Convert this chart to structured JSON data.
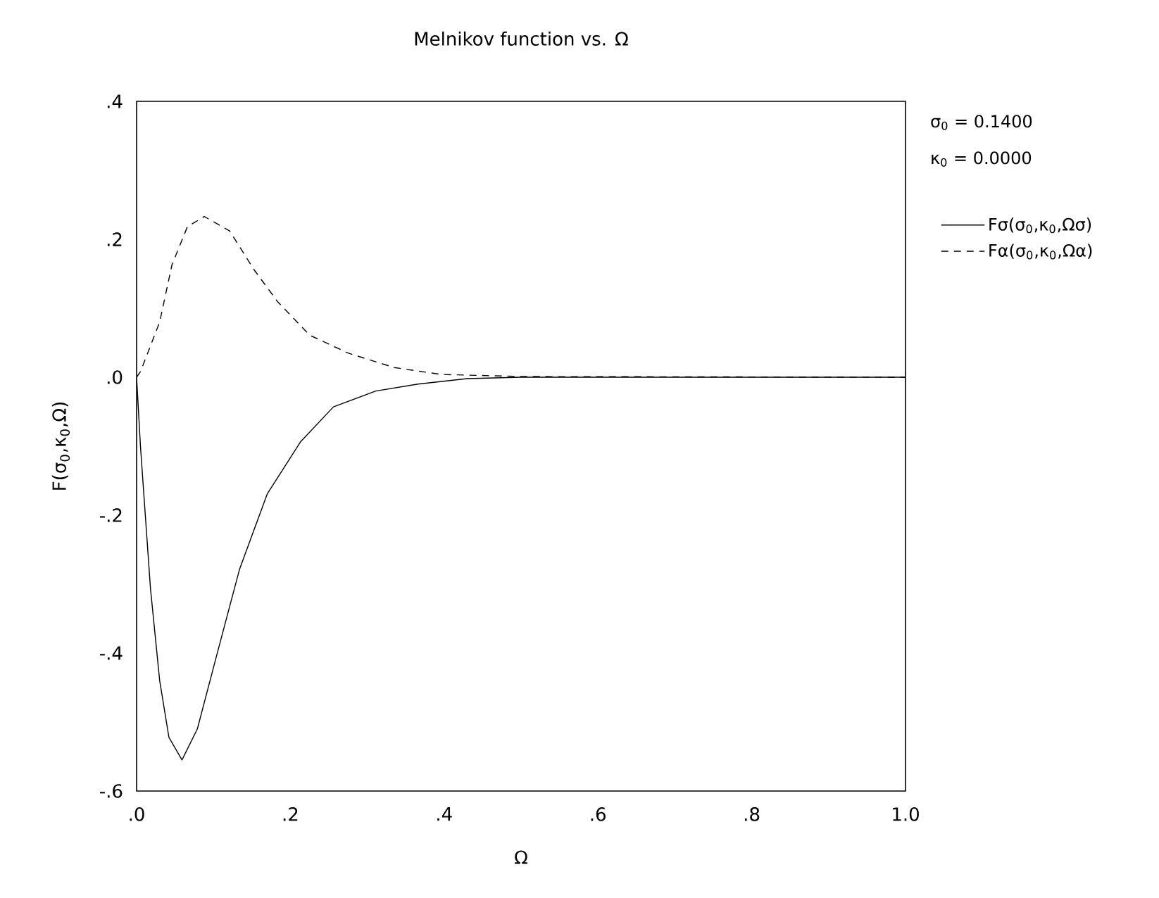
{
  "chart_data": {
    "type": "line",
    "title": "Melnikov function  vs. Ω",
    "xlabel": "Ω",
    "ylabel": "F(σ$_{0}$,κ$_{0}$,Ω)",
    "annotations": [
      "σ$_{0}$   =   0.1400",
      "κ$_{0}$   =   0.0000"
    ],
    "xlim": [
      0,
      1.0
    ],
    "ylim": [
      -0.6,
      0.4
    ],
    "xticks": [
      {
        "value": 0,
        "label": ".0"
      },
      {
        "value": 0.2,
        "label": ".2"
      },
      {
        "value": 0.4,
        "label": ".4"
      },
      {
        "value": 0.6,
        "label": ".6"
      },
      {
        "value": 0.8,
        "label": ".8"
      },
      {
        "value": 1.0,
        "label": "1.0"
      }
    ],
    "yticks": [
      {
        "value": -0.6,
        "label": "-.6"
      },
      {
        "value": -0.4,
        "label": "-.4"
      },
      {
        "value": -0.2,
        "label": "-.2"
      },
      {
        "value": 0,
        "label": ".0"
      },
      {
        "value": 0.2,
        "label": ".2"
      },
      {
        "value": 0.4,
        "label": ".4"
      }
    ],
    "legend": "right",
    "series": [
      {
        "name": "Fσ(σ$_{0}$,κ$_{0}$,Ωσ)",
        "color": "#000000",
        "line_style": "solid",
        "x": [
          0,
          0.005,
          0.018,
          0.03,
          0.042,
          0.059,
          0.079,
          0.103,
          0.134,
          0.17,
          0.213,
          0.256,
          0.311,
          0.366,
          0.43,
          0.5,
          1.0
        ],
        "values": [
          0,
          -0.1,
          -0.306,
          -0.44,
          -0.522,
          -0.555,
          -0.51,
          -0.408,
          -0.278,
          -0.169,
          -0.094,
          -0.043,
          -0.02,
          -0.01,
          -0.002,
          0,
          0
        ]
      },
      {
        "name": "Fα(σ$_{0}$,κ$_{0}$,Ωα)",
        "color": "#000000",
        "line_style": "dashed",
        "x": [
          0,
          0.005,
          0.03,
          0.046,
          0.066,
          0.088,
          0.121,
          0.152,
          0.183,
          0.225,
          0.275,
          0.335,
          0.396,
          0.5,
          1.0
        ],
        "values": [
          0,
          0.008,
          0.08,
          0.163,
          0.218,
          0.233,
          0.212,
          0.157,
          0.11,
          0.061,
          0.035,
          0.014,
          0.004,
          0.001,
          0
        ]
      }
    ]
  }
}
